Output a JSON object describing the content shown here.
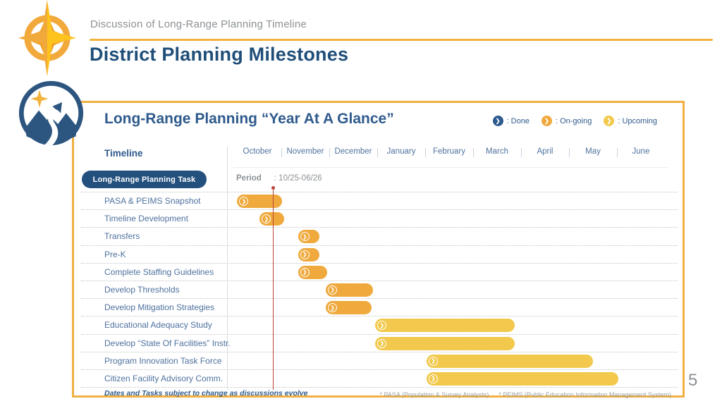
{
  "page": {
    "number": "5"
  },
  "header": {
    "eyebrow": "Discussion of Long-Range Planning Timeline",
    "title": "District Planning Milestones"
  },
  "card": {
    "title": "Long-Range Planning “Year At A Glance”",
    "timeline_label": "Timeline",
    "task_button_label": "Long-Range Planning Task",
    "period_label": "Period",
    "period_value": ": 10/25-06/26",
    "legend": [
      {
        "label": ": Done",
        "status": "done"
      },
      {
        "label": ": On-going",
        "status": "ongoing"
      },
      {
        "label": ": Upcoming",
        "status": "upcoming"
      }
    ],
    "footnote_left": "Dates and Tasks subject to change as discussions evolve",
    "footnote_right_1": "* PASA (Population & Survey Analysts)",
    "footnote_right_2": "* PEIMS (Public Education Information Management System)"
  },
  "colors": {
    "done": "#2e5a8f",
    "ongoing": "#efa93c",
    "upcoming": "#f2c94c",
    "accent_gold": "#f0b042",
    "title_blue": "#1f4e79",
    "today_line": "#bc4639"
  },
  "chart_data": {
    "type": "bar",
    "variant": "gantt-timeline",
    "title": "Long-Range Planning “Year At A Glance”",
    "months": [
      "October",
      "November",
      "December",
      "January",
      "February",
      "March",
      "April",
      "May",
      "June"
    ],
    "period": "10/25-06/26",
    "today_marker_month_offset": 0.82,
    "legend_position": "top-right",
    "tasks": [
      {
        "label": "PASA & PEIMS Snapshot",
        "status": "ongoing",
        "start": 0.08,
        "end": 1.02
      },
      {
        "label": "Timeline Development",
        "status": "ongoing",
        "start": 0.55,
        "end": 1.06
      },
      {
        "label": "Transfers",
        "status": "ongoing",
        "start": 1.35,
        "end": 1.8
      },
      {
        "label": "Pre-K",
        "status": "ongoing",
        "start": 1.35,
        "end": 1.8
      },
      {
        "label": "Complete Staffing Guidelines",
        "status": "ongoing",
        "start": 1.35,
        "end": 1.96
      },
      {
        "label": "Develop Thresholds",
        "status": "ongoing",
        "start": 1.93,
        "end": 2.91
      },
      {
        "label": "Develop Mitigation Strategies",
        "status": "ongoing",
        "start": 1.93,
        "end": 2.88
      },
      {
        "label": "Educational Adequacy Study",
        "status": "upcoming",
        "start": 2.96,
        "end": 5.87
      },
      {
        "label": "Develop “State Of Facilities” Instr.",
        "status": "upcoming",
        "start": 2.96,
        "end": 5.87
      },
      {
        "label": "Program Innovation Task Force",
        "status": "upcoming",
        "start": 4.03,
        "end": 7.5
      },
      {
        "label": "Citizen Facility Advisory Comm.",
        "status": "upcoming",
        "start": 4.03,
        "end": 8.03
      }
    ]
  }
}
